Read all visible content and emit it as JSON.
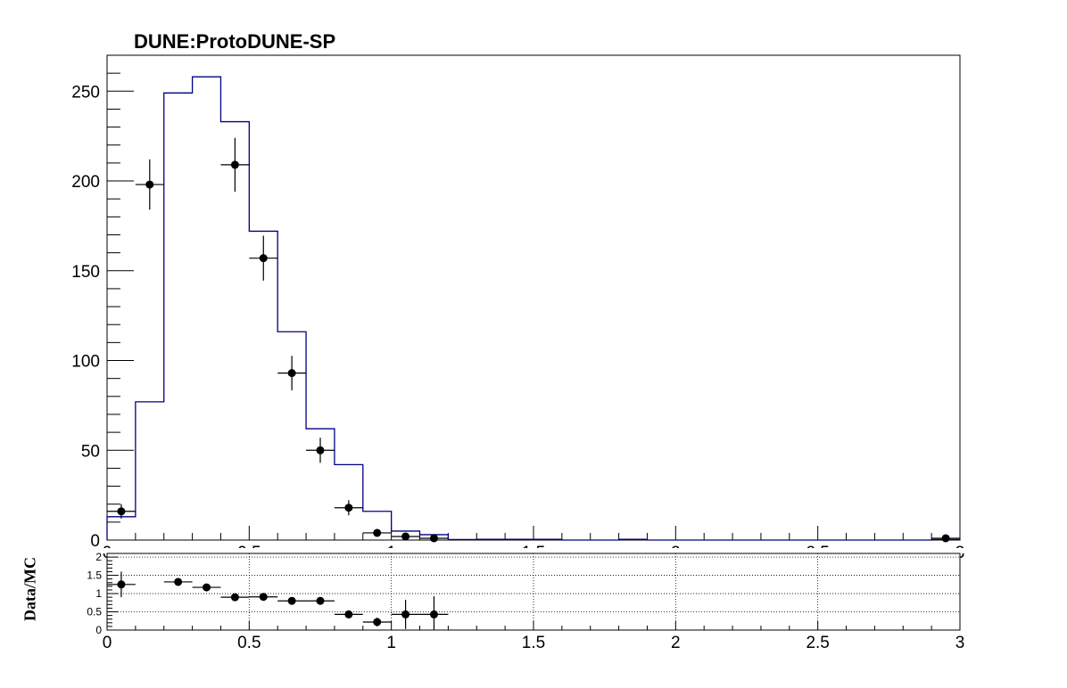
{
  "chart_data": [
    {
      "type": "histogram",
      "title": "DUNE:ProtoDUNE-SP",
      "xlim": [
        0,
        3
      ],
      "ylim": [
        0,
        270
      ],
      "xticks": [
        "0",
        "0.5",
        "1",
        "1.5",
        "2",
        "2.5",
        "3"
      ],
      "yticks": [
        "0",
        "50",
        "100",
        "150",
        "200",
        "250"
      ],
      "bin_width": 0.1,
      "series": [
        {
          "kind": "mc-histogram",
          "color": "#000080",
          "x": [
            0.05,
            0.15,
            0.25,
            0.35,
            0.45,
            0.55,
            0.65,
            0.75,
            0.85,
            0.95,
            1.05,
            1.15,
            1.25,
            1.35,
            1.45,
            1.55,
            1.65,
            1.75,
            1.85,
            1.95,
            2.05,
            2.15,
            2.25,
            2.35,
            2.45,
            2.55,
            2.65,
            2.75,
            2.85,
            2.95
          ],
          "values": [
            13,
            77,
            249,
            258,
            233,
            172,
            116,
            62,
            42,
            16,
            5,
            3,
            0.3,
            0.4,
            0.4,
            0.4,
            0,
            0,
            0.4,
            0,
            0,
            0,
            0,
            0,
            0,
            0,
            0,
            0,
            0,
            0.3
          ]
        },
        {
          "kind": "data-points",
          "color": "#000000",
          "x": [
            0.05,
            0.15,
            0.25,
            0.35,
            0.45,
            0.55,
            0.65,
            0.75,
            0.85,
            0.95,
            1.05,
            1.15,
            2.95
          ],
          "values": [
            16,
            198,
            null,
            null,
            209,
            157,
            93,
            50,
            18,
            4,
            2,
            1,
            1
          ],
          "errors": [
            4,
            14,
            null,
            null,
            15,
            12.5,
            9.6,
            7,
            4.2,
            2,
            1.4,
            1,
            1
          ]
        }
      ]
    },
    {
      "type": "ratio",
      "ylabel": "Data/MC",
      "xlim": [
        0,
        3
      ],
      "ylim": [
        0,
        2.1
      ],
      "xticks": [
        "0",
        "0.5",
        "1",
        "1.5",
        "2",
        "2.5",
        "3"
      ],
      "yticks": [
        "0",
        "0.5",
        "1",
        "1.5",
        "2"
      ],
      "grid": true,
      "x": [
        0.05,
        0.25,
        0.35,
        0.45,
        0.55,
        0.65,
        0.75,
        0.85,
        0.95,
        1.05,
        1.15
      ],
      "values": [
        1.25,
        1.32,
        1.17,
        0.9,
        0.91,
        0.8,
        0.8,
        0.43,
        0.22,
        0.43,
        0.43
      ],
      "errors": [
        0.35,
        0.08,
        0.07,
        0.06,
        0.07,
        0.08,
        0.1,
        0.08,
        0.12,
        0.4,
        0.5
      ]
    }
  ]
}
